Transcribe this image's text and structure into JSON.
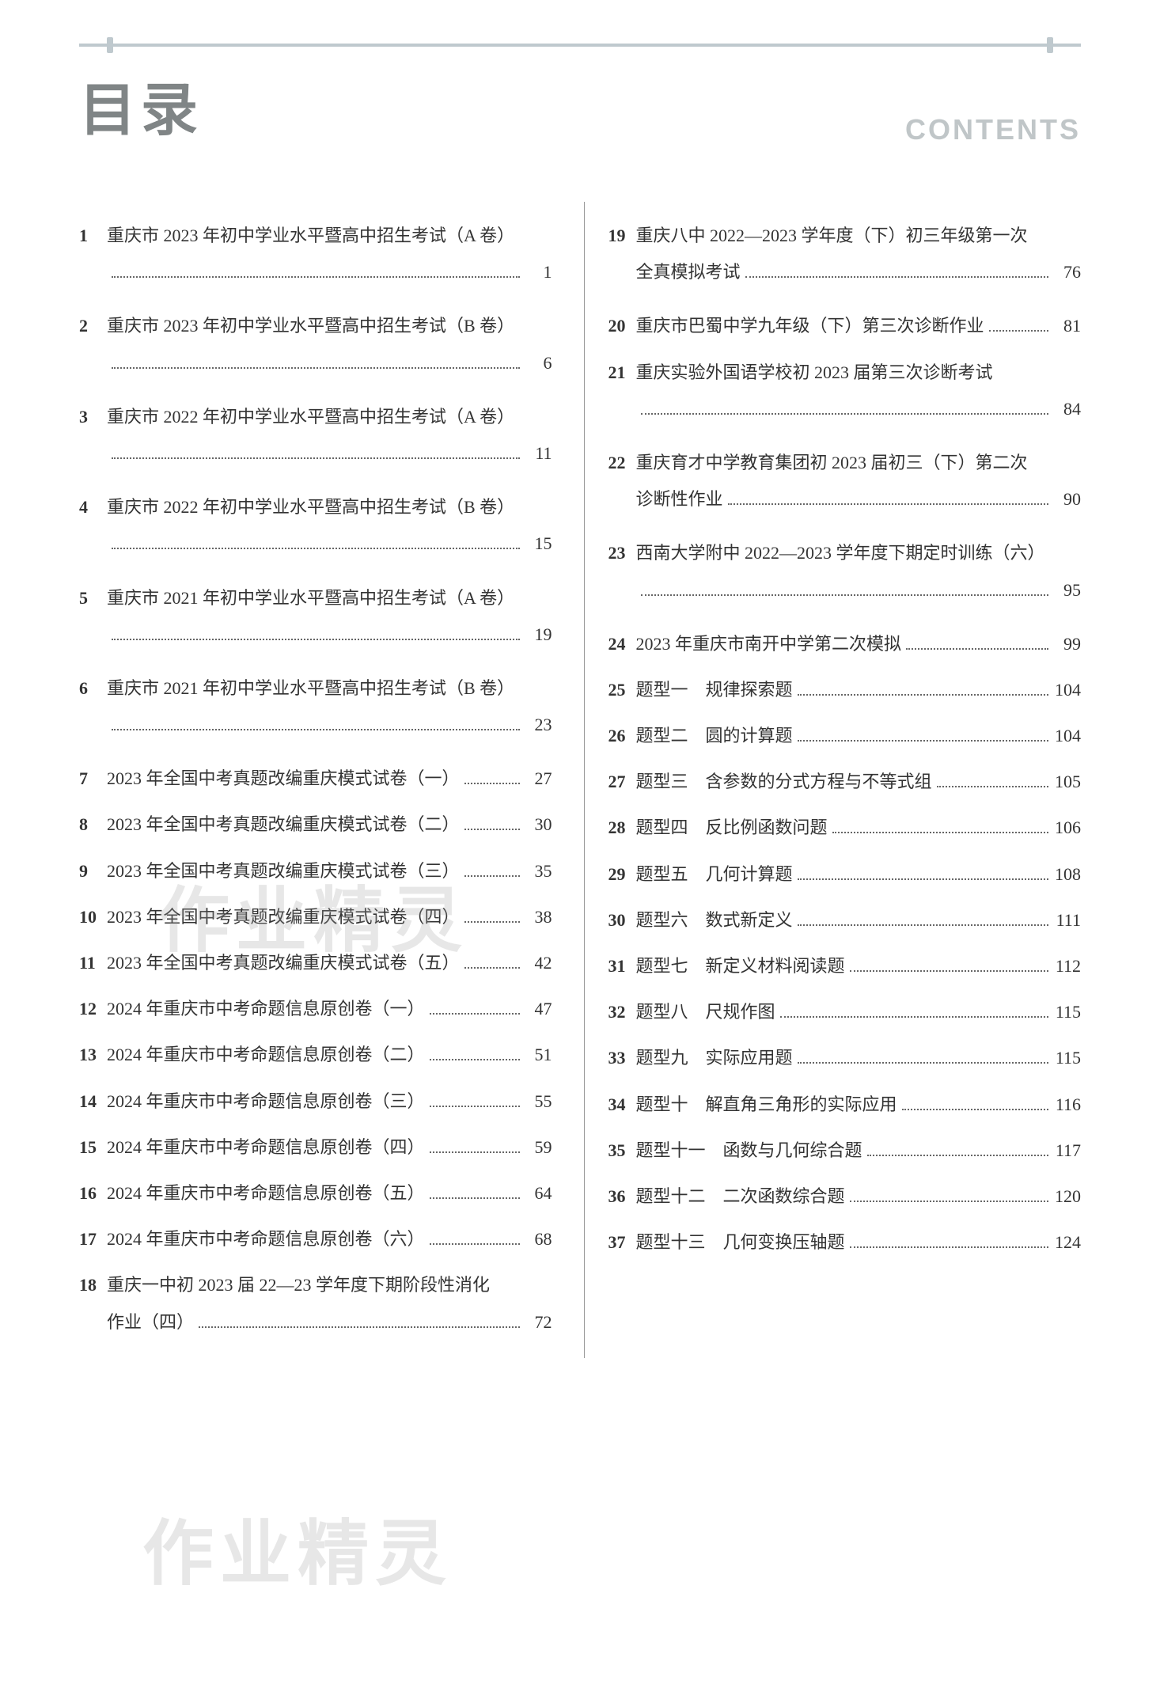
{
  "header": {
    "title_cn": "目录",
    "title_en": "CONTENTS"
  },
  "colors": {
    "title_cn_color": "#808586",
    "title_en_color": "#c0c6c8",
    "text_color": "#333333",
    "line_color": "#bfc9ce",
    "divider_color": "#999999",
    "watermark_color": "rgba(160,160,160,0.25)"
  },
  "typography": {
    "title_cn_fontsize": 72,
    "title_en_fontsize": 36,
    "entry_fontsize": 22
  },
  "watermarks": [
    "作业精灵",
    "作业精灵"
  ],
  "left_column": [
    {
      "num": "1",
      "text": "重庆市 2023 年初中学业水平暨高中招生考试（A 卷）",
      "page": "1",
      "multiline": true
    },
    {
      "num": "2",
      "text": "重庆市 2023 年初中学业水平暨高中招生考试（B 卷）",
      "page": "6",
      "multiline": true
    },
    {
      "num": "3",
      "text": "重庆市 2022 年初中学业水平暨高中招生考试（A 卷）",
      "page": "11",
      "multiline": true
    },
    {
      "num": "4",
      "text": "重庆市 2022 年初中学业水平暨高中招生考试（B 卷）",
      "page": "15",
      "multiline": true
    },
    {
      "num": "5",
      "text": "重庆市 2021 年初中学业水平暨高中招生考试（A 卷）",
      "page": "19",
      "multiline": true
    },
    {
      "num": "6",
      "text": "重庆市 2021 年初中学业水平暨高中招生考试（B 卷）",
      "page": "23",
      "multiline": true
    },
    {
      "num": "7",
      "text": "2023 年全国中考真题改编重庆模式试卷（一）",
      "page": "27",
      "multiline": false
    },
    {
      "num": "8",
      "text": "2023 年全国中考真题改编重庆模式试卷（二）",
      "page": "30",
      "multiline": false
    },
    {
      "num": "9",
      "text": "2023 年全国中考真题改编重庆模式试卷（三）",
      "page": "35",
      "multiline": false
    },
    {
      "num": "10",
      "text": "2023 年全国中考真题改编重庆模式试卷（四）",
      "page": "38",
      "multiline": false
    },
    {
      "num": "11",
      "text": "2023 年全国中考真题改编重庆模式试卷（五）",
      "page": "42",
      "multiline": false
    },
    {
      "num": "12",
      "text": "2024 年重庆市中考命题信息原创卷（一）",
      "page": "47",
      "multiline": false
    },
    {
      "num": "13",
      "text": "2024 年重庆市中考命题信息原创卷（二）",
      "page": "51",
      "multiline": false
    },
    {
      "num": "14",
      "text": "2024 年重庆市中考命题信息原创卷（三）",
      "page": "55",
      "multiline": false
    },
    {
      "num": "15",
      "text": "2024 年重庆市中考命题信息原创卷（四）",
      "page": "59",
      "multiline": false
    },
    {
      "num": "16",
      "text": "2024 年重庆市中考命题信息原创卷（五）",
      "page": "64",
      "multiline": false
    },
    {
      "num": "17",
      "text": "2024 年重庆市中考命题信息原创卷（六）",
      "page": "68",
      "multiline": false
    },
    {
      "num": "18",
      "text_line1": "重庆一中初 2023 届 22—23 学年度下期阶段性消化",
      "text_line2": "作业（四）",
      "page": "72",
      "multiline": "wrap"
    }
  ],
  "right_column": [
    {
      "num": "19",
      "text_line1": "重庆八中 2022—2023 学年度（下）初三年级第一次",
      "text_line2": "全真模拟考试",
      "page": "76",
      "multiline": "wrap"
    },
    {
      "num": "20",
      "text": "重庆市巴蜀中学九年级（下）第三次诊断作业",
      "page": "81",
      "multiline": false
    },
    {
      "num": "21",
      "text": "重庆实验外国语学校初 2023 届第三次诊断考试",
      "page": "84",
      "multiline": true
    },
    {
      "num": "22",
      "text_line1": "重庆育才中学教育集团初 2023 届初三（下）第二次",
      "text_line2": "诊断性作业",
      "page": "90",
      "multiline": "wrap"
    },
    {
      "num": "23",
      "text": "西南大学附中 2022—2023 学年度下期定时训练（六）",
      "page": "95",
      "multiline": true
    },
    {
      "num": "24",
      "text": "2023 年重庆市南开中学第二次模拟",
      "page": "99",
      "multiline": false
    },
    {
      "num": "25",
      "text": "题型一　规律探索题",
      "page": "104",
      "multiline": false
    },
    {
      "num": "26",
      "text": "题型二　圆的计算题",
      "page": "104",
      "multiline": false
    },
    {
      "num": "27",
      "text": "题型三　含参数的分式方程与不等式组",
      "page": "105",
      "multiline": false
    },
    {
      "num": "28",
      "text": "题型四　反比例函数问题",
      "page": "106",
      "multiline": false
    },
    {
      "num": "29",
      "text": "题型五　几何计算题",
      "page": "108",
      "multiline": false
    },
    {
      "num": "30",
      "text": "题型六　数式新定义",
      "page": "111",
      "multiline": false
    },
    {
      "num": "31",
      "text": "题型七　新定义材料阅读题",
      "page": "112",
      "multiline": false
    },
    {
      "num": "32",
      "text": "题型八　尺规作图",
      "page": "115",
      "multiline": false
    },
    {
      "num": "33",
      "text": "题型九　实际应用题",
      "page": "115",
      "multiline": false
    },
    {
      "num": "34",
      "text": "题型十　解直角三角形的实际应用",
      "page": "116",
      "multiline": false
    },
    {
      "num": "35",
      "text": "题型十一　函数与几何综合题",
      "page": "117",
      "multiline": false
    },
    {
      "num": "36",
      "text": "题型十二　二次函数综合题",
      "page": "120",
      "multiline": false
    },
    {
      "num": "37",
      "text": "题型十三　几何变换压轴题",
      "page": "124",
      "multiline": false
    }
  ]
}
